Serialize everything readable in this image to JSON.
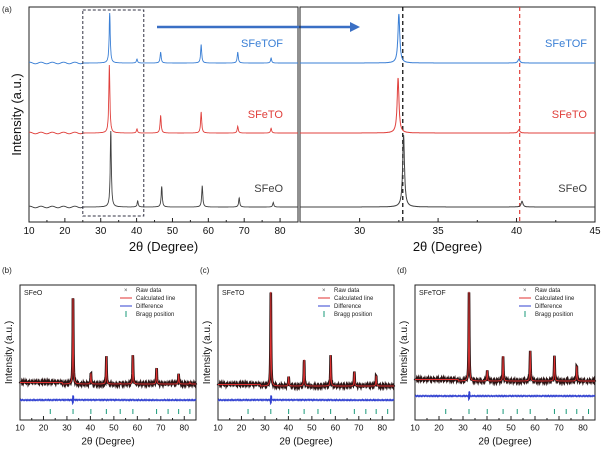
{
  "chart_data": [
    {
      "type": "line",
      "panel_label": "(a)",
      "xlabel": "2θ (Degree)",
      "ylabel": "Intensity (a.u.)",
      "xlim": [
        10,
        85
      ],
      "xticks": [
        10,
        20,
        30,
        40,
        50,
        60,
        70,
        80
      ],
      "highlight_box_x": [
        25,
        42
      ],
      "series": [
        {
          "name": "SFeTOF",
          "color": "#3a7fd5",
          "peaks": [
            [
              32.5,
              100
            ],
            [
              40.1,
              8
            ],
            [
              46.7,
              22
            ],
            [
              58.0,
              37
            ],
            [
              68.2,
              22
            ],
            [
              77.5,
              10
            ]
          ]
        },
        {
          "name": "SFeTO",
          "color": "#e0403c",
          "peaks": [
            [
              32.4,
              100
            ],
            [
              40.1,
              6
            ],
            [
              46.7,
              26
            ],
            [
              58.0,
              31
            ],
            [
              68.2,
              10
            ],
            [
              77.5,
              7
            ]
          ]
        },
        {
          "name": "SFeO",
          "color": "#404040",
          "peaks": [
            [
              32.8,
              100
            ],
            [
              40.3,
              8
            ],
            [
              47.0,
              27
            ],
            [
              58.3,
              28
            ],
            [
              68.6,
              12
            ],
            [
              78.1,
              6
            ]
          ]
        }
      ]
    },
    {
      "type": "line",
      "xlabel": "2θ (Degree)",
      "xlim": [
        26.2,
        45
      ],
      "xticks": [
        30,
        35,
        40,
        45
      ],
      "reference_lines": [
        {
          "x": 32.75,
          "color": "#000000"
        },
        {
          "x": 40.2,
          "color": "#e0403c"
        }
      ],
      "series": [
        {
          "name": "SFeTOF",
          "color": "#3a7fd5",
          "peaks": [
            [
              32.5,
              100
            ],
            [
              40.15,
              8
            ]
          ]
        },
        {
          "name": "SFeTO",
          "color": "#e0403c",
          "peaks": [
            [
              32.45,
              100
            ],
            [
              40.15,
              6
            ]
          ]
        },
        {
          "name": "SFeO",
          "color": "#404040",
          "peaks": [
            [
              32.8,
              100
            ],
            [
              40.35,
              8
            ]
          ]
        }
      ]
    },
    {
      "type": "line",
      "panel_label": "(b)",
      "sample": "SFeO",
      "xlabel": "2θ (Degree)",
      "ylabel": "Intensity (a.u.)",
      "xlim": [
        10,
        85
      ],
      "xticks": [
        10,
        20,
        30,
        40,
        50,
        60,
        70,
        80
      ],
      "legend": [
        "Raw data",
        "Calculated line",
        "Difference",
        "Bragg position"
      ],
      "peaks": [
        [
          32.6,
          100
        ],
        [
          40.2,
          12
        ],
        [
          46.8,
          30
        ],
        [
          58.1,
          32
        ],
        [
          68.2,
          18
        ],
        [
          77.6,
          11
        ],
        [
          52.7,
          1
        ],
        [
          82.4,
          2
        ]
      ],
      "bragg_positions": [
        22.9,
        32.6,
        40.2,
        46.8,
        52.7,
        58.1,
        68.2,
        73.1,
        77.6,
        82.4
      ]
    },
    {
      "type": "line",
      "panel_label": "(c)",
      "sample": "SFeTO",
      "xlabel": "2θ (Degree)",
      "ylabel": "Intensity (a.u.)",
      "xlim": [
        10,
        85
      ],
      "xticks": [
        10,
        20,
        30,
        40,
        50,
        60,
        70,
        80
      ],
      "legend": [
        "Raw data",
        "Calculated line",
        "Difference",
        "Bragg position"
      ],
      "peaks": [
        [
          32.5,
          100
        ],
        [
          40.1,
          10
        ],
        [
          46.7,
          28
        ],
        [
          58.0,
          32
        ],
        [
          68.1,
          15
        ],
        [
          77.4,
          11
        ]
      ],
      "bragg_positions": [
        22.8,
        32.5,
        40.1,
        46.7,
        52.6,
        58.0,
        68.1,
        73.0,
        77.4,
        82.3
      ]
    },
    {
      "type": "line",
      "panel_label": "(d)",
      "sample": "SFeTOF",
      "xlabel": "2θ (Degree)",
      "ylabel": "Intensity (a.u.)",
      "xlim": [
        10,
        85
      ],
      "xticks": [
        10,
        20,
        30,
        40,
        50,
        60,
        70,
        80
      ],
      "legend": [
        "Raw data",
        "Calculated line",
        "Difference",
        "Bragg position"
      ],
      "peaks": [
        [
          32.5,
          100
        ],
        [
          40.1,
          12
        ],
        [
          46.7,
          28
        ],
        [
          58.0,
          33
        ],
        [
          68.1,
          28
        ],
        [
          77.4,
          17
        ]
      ],
      "bragg_positions": [
        22.8,
        32.5,
        40.1,
        46.7,
        52.6,
        58.0,
        68.1,
        73.0,
        77.4,
        82.3
      ]
    }
  ]
}
